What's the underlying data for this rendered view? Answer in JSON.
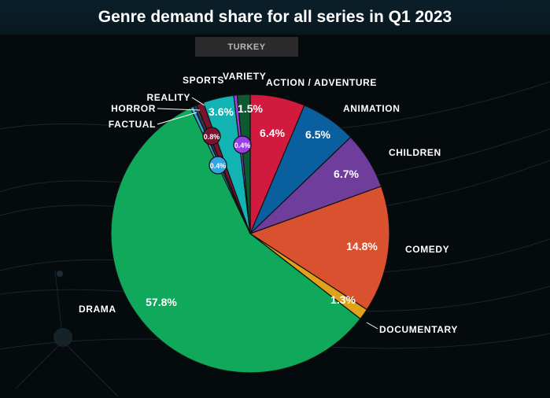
{
  "title": "Genre demand share for all series in Q1 2023",
  "subtitle": "TURKEY",
  "chart_data": {
    "type": "pie",
    "slices": [
      {
        "name": "ACTION / ADVENTURE",
        "value": 6.4,
        "label": "6.4%",
        "color": "#d11a3e"
      },
      {
        "name": "ANIMATION",
        "value": 6.5,
        "label": "6.5%",
        "color": "#0a5f9f"
      },
      {
        "name": "CHILDREN",
        "value": 6.7,
        "label": "6.7%",
        "color": "#6f3d9b"
      },
      {
        "name": "COMEDY",
        "value": 14.8,
        "label": "14.8%",
        "color": "#d9512f"
      },
      {
        "name": "DOCUMENTARY",
        "value": 1.3,
        "label": "1.3%",
        "color": "#e0a21a"
      },
      {
        "name": "DRAMA",
        "value": 57.8,
        "label": "57.8%",
        "color": "#10a85a"
      },
      {
        "name": "FACTUAL",
        "value": 0.4,
        "label": "0.4%",
        "color": "#33a6e0"
      },
      {
        "name": "HORROR",
        "value": 0.4,
        "label": "",
        "color": "#2a3a48"
      },
      {
        "name": "REALITY",
        "value": 0.8,
        "label": "0.8%",
        "color": "#7a1230"
      },
      {
        "name": "SPORTS",
        "value": 3.6,
        "label": "3.6%",
        "color": "#12b3b3"
      },
      {
        "name": "VARIETY",
        "value": 0.4,
        "label": "0.4%",
        "color": "#9b3fe6"
      },
      {
        "name": "",
        "value": 1.5,
        "label": "1.5%",
        "color": "#0d5a32"
      }
    ]
  }
}
